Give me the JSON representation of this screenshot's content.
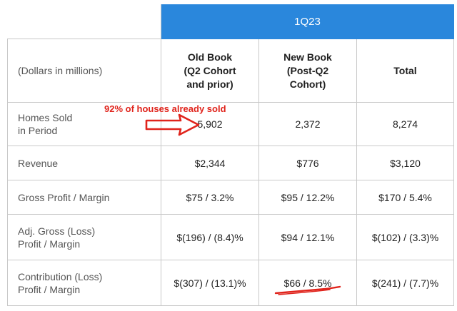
{
  "table": {
    "period": "1Q23",
    "header": {
      "label": "(Dollars in millions)",
      "old_book": [
        "Old Book",
        "(Q2 Cohort",
        "and prior)"
      ],
      "new_book": [
        "New Book",
        "(Post-Q2",
        "Cohort)"
      ],
      "total": "Total"
    },
    "rows": [
      {
        "label": [
          "Homes Sold",
          "in Period"
        ],
        "old": "5,902",
        "new": "2,372",
        "total": "8,274"
      },
      {
        "label": [
          "Revenue"
        ],
        "old": "$2,344",
        "new": "$776",
        "total": "$3,120"
      },
      {
        "label": [
          "Gross Profit / Margin"
        ],
        "old": "$75 / 3.2%",
        "new": "$95 / 12.2%",
        "total": "$170 / 5.4%"
      },
      {
        "label": [
          "Adj. Gross (Loss)",
          "Profit / Margin"
        ],
        "old": "$(196) / (8.4)%",
        "new": "$94 / 12.1%",
        "total": "$(102) / (3.3)%"
      },
      {
        "label": [
          "Contribution (Loss)",
          "Profit / Margin"
        ],
        "old": "$(307) / (13.1)%",
        "new": "$66 / 8.5%",
        "total": "$(241) / (7.7)%"
      }
    ]
  },
  "annotations": {
    "text": "92% of houses already sold",
    "color": "#e0231b",
    "arrow_target": "homes-sold-old-book",
    "underline_target": "contribution-new-book"
  },
  "colors": {
    "header_band": "#2a87dc",
    "grid": "#c9c9c9"
  }
}
